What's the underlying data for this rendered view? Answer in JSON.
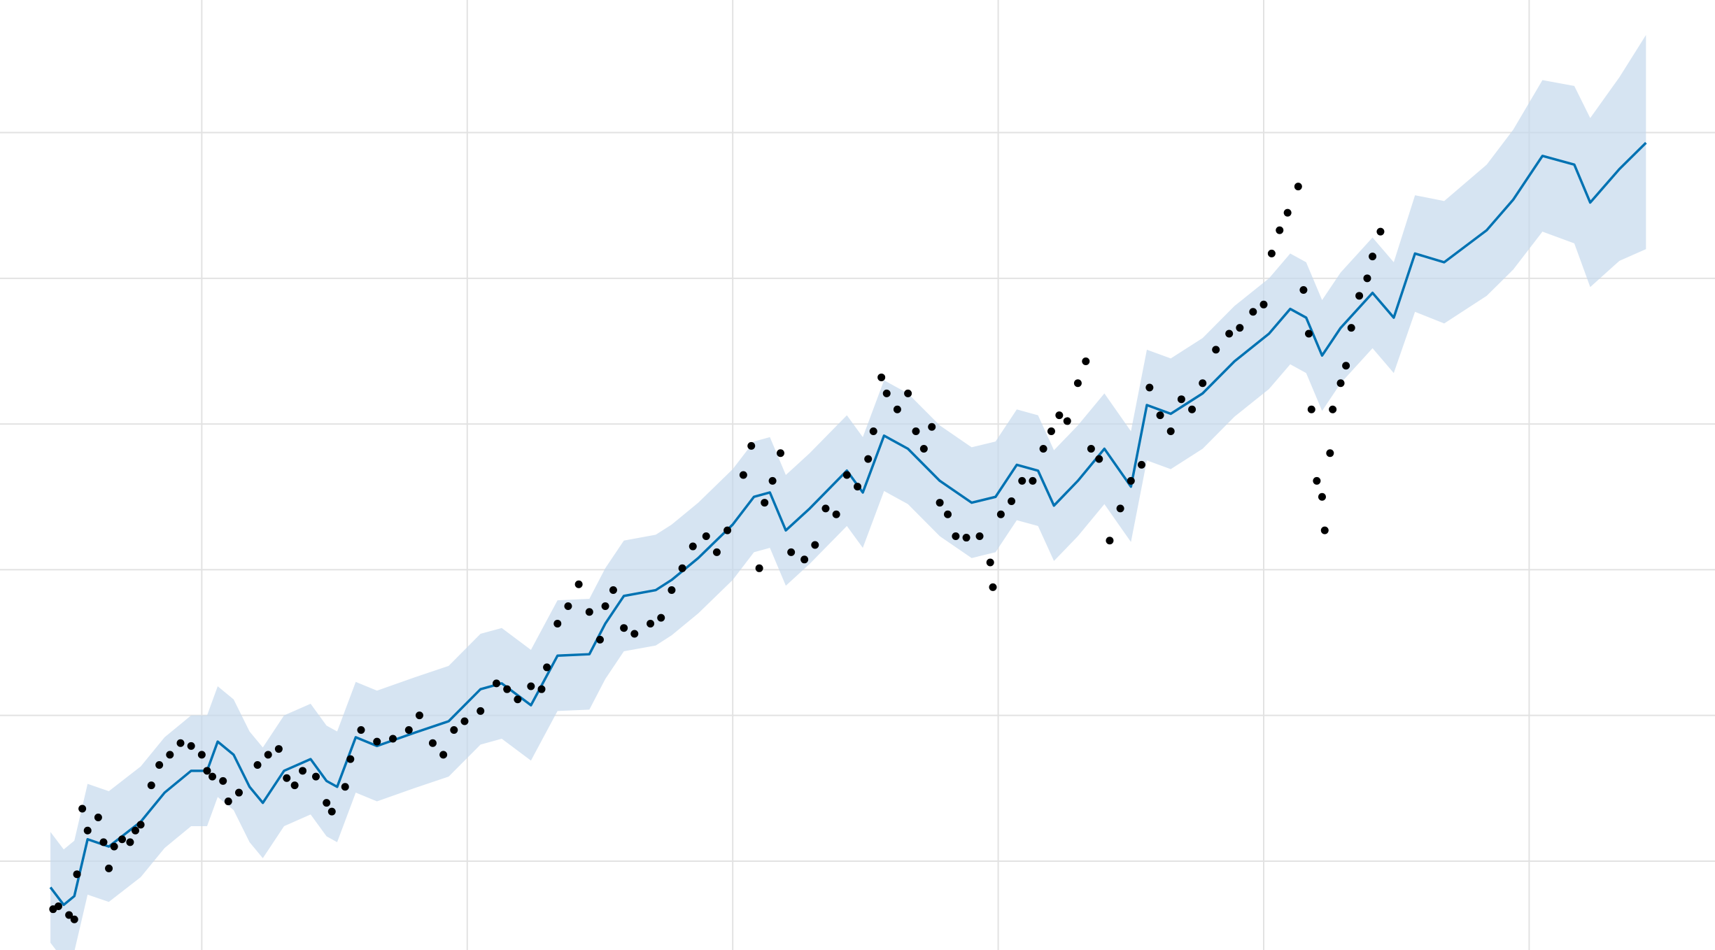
{
  "chart_data": {
    "type": "forecast",
    "xlim": [
      -0.76,
      5.7
    ],
    "ylim": [
      -0.61,
      5.91
    ],
    "xticks": [
      0,
      1,
      2,
      3,
      4,
      5
    ],
    "yticks": [
      0,
      1,
      2,
      3,
      4,
      5
    ],
    "grid": true,
    "forecast": {
      "color": "#0072b2",
      "band_color": "#c5d9ec",
      "x": [
        -0.57,
        -0.52,
        -0.48,
        -0.43,
        -0.35,
        -0.23,
        -0.14,
        -0.04,
        0.02,
        0.06,
        0.12,
        0.18,
        0.23,
        0.31,
        0.41,
        0.47,
        0.51,
        0.58,
        0.66,
        0.8,
        0.93,
        1.05,
        1.13,
        1.24,
        1.34,
        1.46,
        1.52,
        1.59,
        1.71,
        1.77,
        1.87,
        2.0,
        2.08,
        2.14,
        2.2,
        2.29,
        2.43,
        2.49,
        2.57,
        2.66,
        2.78,
        2.9,
        2.99,
        3.07,
        3.15,
        3.21,
        3.3,
        3.4,
        3.5,
        3.56,
        3.65,
        3.77,
        3.89,
        4.02,
        4.1,
        4.16,
        4.22,
        4.29,
        4.41,
        4.49,
        4.57,
        4.68,
        4.84,
        4.94,
        5.05,
        5.17,
        5.23,
        5.34,
        5.44
      ],
      "values": [
        -0.18,
        -0.3,
        -0.24,
        0.15,
        0.1,
        0.27,
        0.47,
        0.62,
        0.62,
        0.82,
        0.73,
        0.51,
        0.4,
        0.62,
        0.7,
        0.55,
        0.51,
        0.85,
        0.79,
        0.88,
        0.96,
        1.18,
        1.22,
        1.07,
        1.41,
        1.42,
        1.63,
        1.82,
        1.86,
        1.93,
        2.08,
        2.31,
        2.5,
        2.53,
        2.27,
        2.42,
        2.68,
        2.53,
        2.92,
        2.83,
        2.61,
        2.46,
        2.5,
        2.72,
        2.68,
        2.44,
        2.61,
        2.83,
        2.57,
        3.13,
        3.07,
        3.21,
        3.43,
        3.62,
        3.79,
        3.73,
        3.47,
        3.66,
        3.9,
        3.73,
        4.17,
        4.11,
        4.33,
        4.54,
        4.84,
        4.78,
        4.52,
        4.75,
        4.93
      ],
      "upper": [
        0.2,
        0.08,
        0.14,
        0.53,
        0.48,
        0.65,
        0.85,
        1.0,
        1.0,
        1.2,
        1.11,
        0.89,
        0.78,
        1.0,
        1.08,
        0.93,
        0.89,
        1.23,
        1.17,
        1.26,
        1.34,
        1.56,
        1.6,
        1.45,
        1.79,
        1.8,
        2.01,
        2.2,
        2.24,
        2.31,
        2.46,
        2.69,
        2.88,
        2.91,
        2.65,
        2.8,
        3.06,
        2.91,
        3.3,
        3.21,
        2.99,
        2.84,
        2.88,
        3.1,
        3.06,
        2.82,
        2.99,
        3.21,
        2.95,
        3.51,
        3.45,
        3.59,
        3.81,
        4.0,
        4.17,
        4.11,
        3.85,
        4.04,
        4.28,
        4.11,
        4.57,
        4.53,
        4.78,
        5.02,
        5.36,
        5.32,
        5.1,
        5.38,
        5.67
      ],
      "lower": [
        -0.56,
        -0.68,
        -0.62,
        -0.23,
        -0.28,
        -0.11,
        0.09,
        0.24,
        0.24,
        0.44,
        0.35,
        0.13,
        0.02,
        0.24,
        0.32,
        0.17,
        0.13,
        0.47,
        0.41,
        0.5,
        0.58,
        0.8,
        0.84,
        0.69,
        1.03,
        1.04,
        1.25,
        1.44,
        1.48,
        1.55,
        1.7,
        1.93,
        2.12,
        2.15,
        1.89,
        2.04,
        2.3,
        2.15,
        2.54,
        2.45,
        2.23,
        2.08,
        2.12,
        2.34,
        2.3,
        2.06,
        2.23,
        2.45,
        2.19,
        2.75,
        2.69,
        2.83,
        3.05,
        3.24,
        3.41,
        3.35,
        3.09,
        3.28,
        3.52,
        3.35,
        3.77,
        3.69,
        3.88,
        4.06,
        4.32,
        4.24,
        3.94,
        4.12,
        4.2
      ]
    },
    "observed": {
      "color": "#000000",
      "x": [
        -0.56,
        -0.54,
        -0.5,
        -0.48,
        -0.47,
        -0.45,
        -0.43,
        -0.39,
        -0.37,
        -0.35,
        -0.33,
        -0.3,
        -0.27,
        -0.25,
        -0.23,
        -0.19,
        -0.16,
        -0.12,
        -0.08,
        -0.04,
        0.0,
        0.02,
        0.04,
        0.08,
        0.1,
        0.14,
        0.21,
        0.25,
        0.29,
        0.32,
        0.35,
        0.38,
        0.43,
        0.47,
        0.49,
        0.54,
        0.56,
        0.6,
        0.66,
        0.72,
        0.78,
        0.82,
        0.87,
        0.91,
        0.95,
        0.99,
        1.05,
        1.11,
        1.15,
        1.19,
        1.24,
        1.28,
        1.3,
        1.34,
        1.38,
        1.42,
        1.46,
        1.5,
        1.52,
        1.55,
        1.59,
        1.63,
        1.69,
        1.73,
        1.77,
        1.81,
        1.85,
        1.9,
        1.94,
        1.98,
        2.04,
        2.07,
        2.1,
        2.12,
        2.15,
        2.18,
        2.22,
        2.27,
        2.31,
        2.35,
        2.39,
        2.43,
        2.47,
        2.51,
        2.53,
        2.56,
        2.58,
        2.62,
        2.66,
        2.69,
        2.72,
        2.75,
        2.78,
        2.81,
        2.84,
        2.88,
        2.93,
        2.97,
        2.98,
        3.01,
        3.05,
        3.09,
        3.13,
        3.17,
        3.2,
        3.23,
        3.26,
        3.3,
        3.33,
        3.35,
        3.38,
        3.42,
        3.46,
        3.5,
        3.54,
        3.57,
        3.61,
        3.65,
        3.69,
        3.73,
        3.77,
        3.82,
        3.87,
        3.91,
        3.96,
        4.0,
        4.03,
        4.06,
        4.09,
        4.13,
        4.15,
        4.17,
        4.18,
        4.2,
        4.22,
        4.23,
        4.25,
        4.26,
        4.29,
        4.31,
        4.33,
        4.36,
        4.39,
        4.41,
        4.44
      ],
      "values": [
        -0.33,
        -0.31,
        -0.37,
        -0.4,
        -0.09,
        0.36,
        0.21,
        0.3,
        0.13,
        -0.05,
        0.1,
        0.15,
        0.13,
        0.21,
        0.25,
        0.52,
        0.66,
        0.73,
        0.81,
        0.79,
        0.73,
        0.62,
        0.58,
        0.55,
        0.41,
        0.47,
        0.66,
        0.73,
        0.77,
        0.57,
        0.52,
        0.62,
        0.58,
        0.4,
        0.34,
        0.51,
        0.7,
        0.9,
        0.82,
        0.84,
        0.9,
        1.0,
        0.81,
        0.73,
        0.9,
        0.96,
        1.03,
        1.22,
        1.18,
        1.11,
        1.2,
        1.18,
        1.33,
        1.63,
        1.75,
        1.9,
        1.71,
        1.52,
        1.75,
        1.86,
        1.6,
        1.56,
        1.63,
        1.67,
        1.86,
        2.01,
        2.16,
        2.23,
        2.12,
        2.27,
        2.65,
        2.85,
        2.01,
        2.46,
        2.61,
        2.8,
        2.12,
        2.07,
        2.17,
        2.42,
        2.38,
        2.65,
        2.57,
        2.76,
        2.95,
        3.32,
        3.21,
        3.1,
        3.21,
        2.95,
        2.83,
        2.98,
        2.46,
        2.38,
        2.23,
        2.22,
        2.23,
        2.05,
        1.88,
        2.38,
        2.47,
        2.61,
        2.61,
        2.83,
        2.95,
        3.06,
        3.02,
        3.28,
        3.43,
        2.83,
        2.76,
        2.2,
        2.42,
        2.61,
        2.72,
        3.25,
        3.06,
        2.95,
        3.17,
        3.1,
        3.28,
        3.51,
        3.62,
        3.66,
        3.77,
        3.82,
        4.17,
        4.33,
        4.45,
        4.63,
        3.92,
        3.62,
        3.1,
        2.61,
        2.5,
        2.27,
        2.8,
        3.1,
        3.28,
        3.4,
        3.66,
        3.88,
        4.0,
        4.15,
        4.32
      ]
    }
  }
}
